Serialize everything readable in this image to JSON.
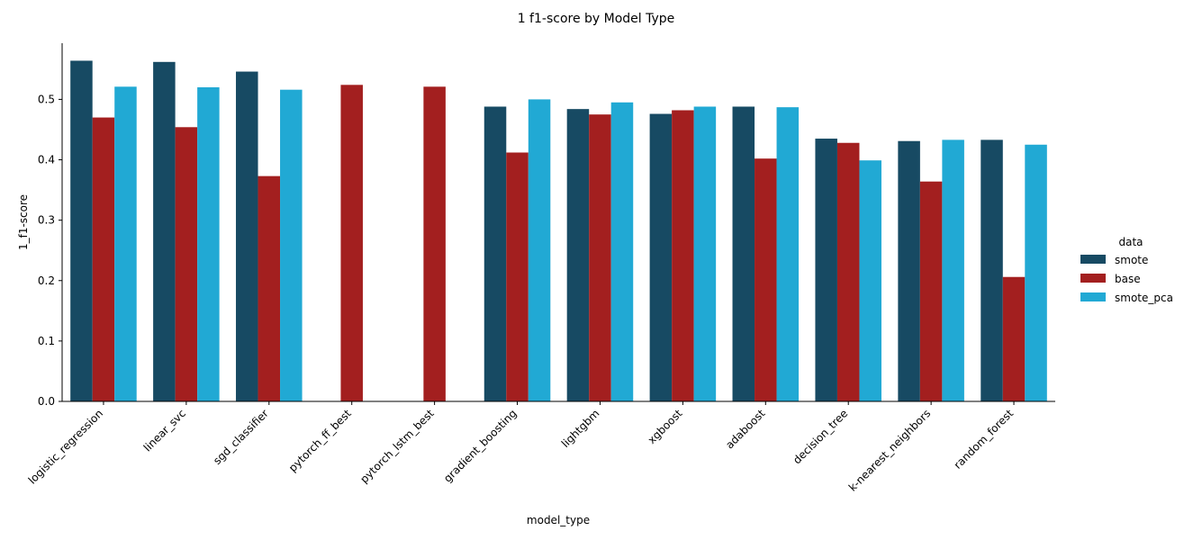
{
  "chart_data": {
    "type": "bar",
    "title": "1 f1-score by Model Type",
    "xlabel": "model_type",
    "ylabel": "1_f1-score",
    "ylim": [
      0,
      0.593
    ],
    "yticks": [
      "0.0",
      "0.1",
      "0.2",
      "0.3",
      "0.4",
      "0.5"
    ],
    "grid": false,
    "legend": {
      "title": "data",
      "placement": "right"
    },
    "categories": [
      "logistic_regression",
      "linear_svc",
      "sgd_classifier",
      "pytorch_ff_best",
      "pytorch_lstm_best",
      "gradient_boosting",
      "lightgbm",
      "xgboost",
      "adaboost",
      "decision_tree",
      "k-nearest_neighbors",
      "random_forest"
    ],
    "series": [
      {
        "name": "smote",
        "color": "#174a63",
        "values": [
          0.564,
          0.562,
          0.546,
          null,
          null,
          0.488,
          0.484,
          0.476,
          0.488,
          0.435,
          0.431,
          0.433
        ]
      },
      {
        "name": "base",
        "color": "#a31f1f",
        "values": [
          0.47,
          0.454,
          0.373,
          0.524,
          0.521,
          0.412,
          0.475,
          0.482,
          0.402,
          0.428,
          0.364,
          0.206
        ]
      },
      {
        "name": "smote_pca",
        "color": "#21a9d4",
        "values": [
          0.521,
          0.52,
          0.516,
          null,
          null,
          0.5,
          0.495,
          0.488,
          0.487,
          0.399,
          0.433,
          0.425
        ]
      }
    ]
  }
}
